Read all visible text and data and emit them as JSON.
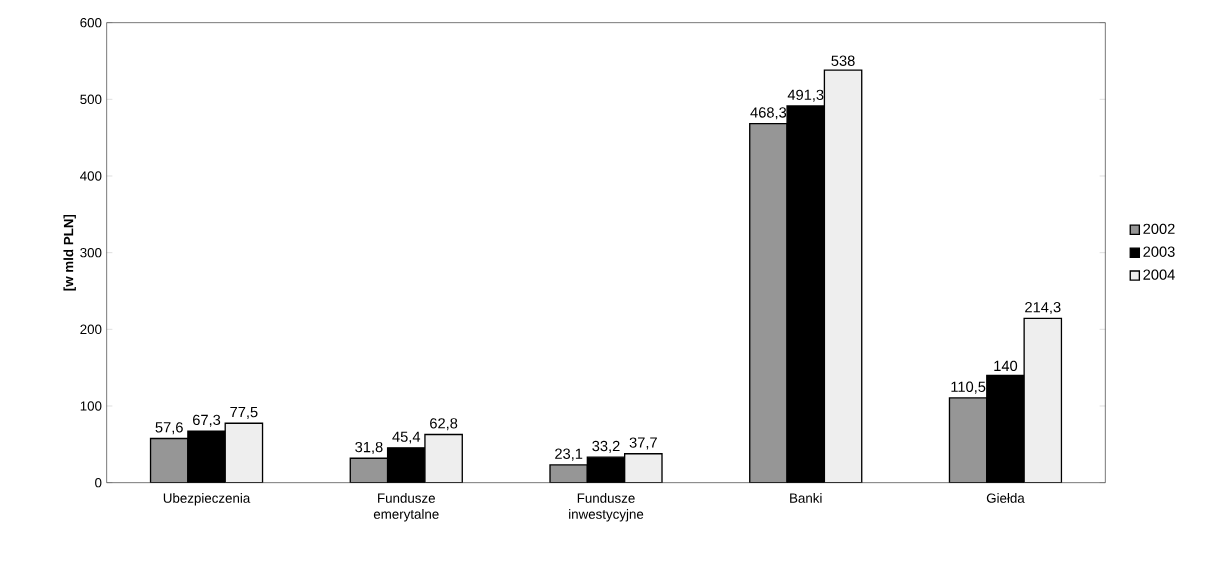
{
  "chart_data": {
    "type": "bar",
    "ylabel": "[w mld PLN]",
    "categories": [
      "Ubezpieczenia",
      "Fundusze emerytalne",
      "Fundusze inwestycyjne",
      "Banki",
      "Giełda"
    ],
    "series": [
      {
        "name": "2002",
        "color": "#969696",
        "values": [
          57.6,
          31.8,
          23.1,
          468.3,
          110.5
        ],
        "value_labels": [
          "57,6",
          "31,8",
          "23,1",
          "468,3",
          "110,5"
        ]
      },
      {
        "name": "2003",
        "color": "#000000",
        "values": [
          67.3,
          45.4,
          33.2,
          491.3,
          140
        ],
        "value_labels": [
          "67,3",
          "45,4",
          "33,2",
          "491,3",
          "140"
        ]
      },
      {
        "name": "2004",
        "color": "#eeeeee",
        "values": [
          77.5,
          62.8,
          37.7,
          538,
          214.3
        ],
        "value_labels": [
          "77,5",
          "62,8",
          "37,7",
          "538",
          "214,3"
        ]
      }
    ],
    "ylim": [
      0,
      600
    ],
    "yticks": [
      0,
      100,
      200,
      300,
      400,
      500,
      600
    ],
    "grid": false,
    "legend": "right"
  }
}
